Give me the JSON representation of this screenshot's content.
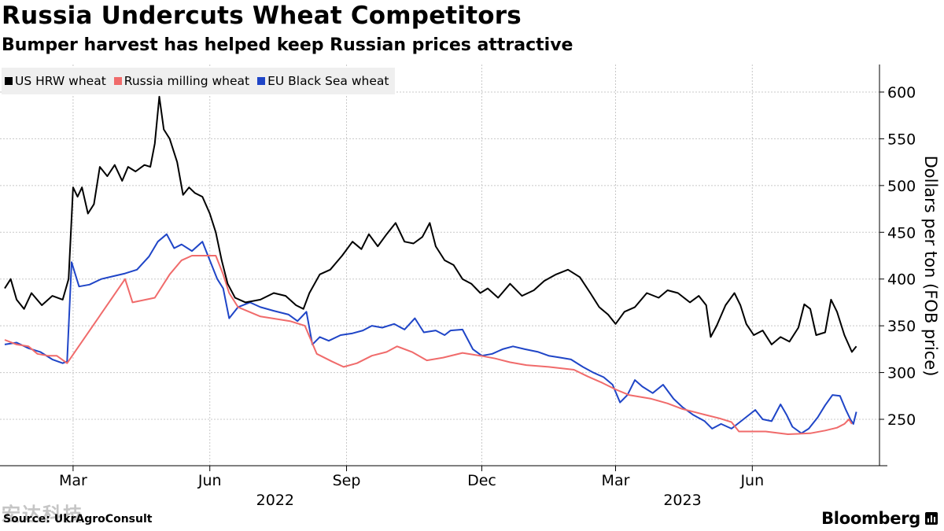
{
  "title": "Russia Undercuts Wheat Competitors",
  "subtitle": "Bumper harvest has helped keep Russian prices attractive",
  "source": "Source: UkrAgroConsult",
  "watermark": "宏达科技",
  "brand": "Bloomberg",
  "chart_data": {
    "type": "line",
    "title": "Russia Undercuts Wheat Competitors",
    "subtitle": "Bumper harvest has helped keep Russian prices attractive",
    "ylabel": "Dollars per ton (FOB price)",
    "xlabel": "",
    "ylim": [
      205,
      625
    ],
    "yticks": [
      250,
      300,
      350,
      400,
      450,
      500,
      550,
      600
    ],
    "xticks": [
      {
        "label": "Mar",
        "date": "2022-03-01"
      },
      {
        "label": "Jun",
        "date": "2022-06-01"
      },
      {
        "label": "Sep",
        "date": "2022-09-01"
      },
      {
        "label": "Dec",
        "date": "2022-12-01"
      },
      {
        "label": "Mar",
        "date": "2023-03-01"
      },
      {
        "label": "Jun",
        "date": "2023-06-01"
      }
    ],
    "year_labels": [
      {
        "label": "2022",
        "date": "2022-07-15"
      },
      {
        "label": "2023",
        "date": "2023-04-15"
      }
    ],
    "xrange": [
      "2022-01-14",
      "2023-08-15"
    ],
    "grid": true,
    "legend_position": "top-left",
    "axis_side": "right",
    "series": [
      {
        "name": "US HRW wheat",
        "color": "#000000",
        "points": [
          [
            "2022-01-14",
            390
          ],
          [
            "2022-01-18",
            400
          ],
          [
            "2022-01-22",
            378
          ],
          [
            "2022-01-27",
            368
          ],
          [
            "2022-02-01",
            385
          ],
          [
            "2022-02-08",
            372
          ],
          [
            "2022-02-15",
            382
          ],
          [
            "2022-02-22",
            378
          ],
          [
            "2022-02-26",
            400
          ],
          [
            "2022-03-01",
            498
          ],
          [
            "2022-03-04",
            488
          ],
          [
            "2022-03-07",
            498
          ],
          [
            "2022-03-11",
            470
          ],
          [
            "2022-03-15",
            480
          ],
          [
            "2022-03-19",
            520
          ],
          [
            "2022-03-24",
            510
          ],
          [
            "2022-03-29",
            522
          ],
          [
            "2022-04-03",
            505
          ],
          [
            "2022-04-07",
            520
          ],
          [
            "2022-04-12",
            515
          ],
          [
            "2022-04-18",
            522
          ],
          [
            "2022-04-22",
            520
          ],
          [
            "2022-04-25",
            545
          ],
          [
            "2022-04-28",
            595
          ],
          [
            "2022-05-01",
            560
          ],
          [
            "2022-05-05",
            550
          ],
          [
            "2022-05-10",
            525
          ],
          [
            "2022-05-14",
            490
          ],
          [
            "2022-05-18",
            498
          ],
          [
            "2022-05-22",
            492
          ],
          [
            "2022-05-27",
            488
          ],
          [
            "2022-06-01",
            470
          ],
          [
            "2022-06-05",
            450
          ],
          [
            "2022-06-09",
            420
          ],
          [
            "2022-06-13",
            395
          ],
          [
            "2022-06-18",
            380
          ],
          [
            "2022-06-25",
            375
          ],
          [
            "2022-07-05",
            378
          ],
          [
            "2022-07-14",
            385
          ],
          [
            "2022-07-22",
            382
          ],
          [
            "2022-07-29",
            372
          ],
          [
            "2022-08-03",
            368
          ],
          [
            "2022-08-07",
            385
          ],
          [
            "2022-08-14",
            405
          ],
          [
            "2022-08-21",
            410
          ],
          [
            "2022-08-29",
            425
          ],
          [
            "2022-09-05",
            440
          ],
          [
            "2022-09-11",
            432
          ],
          [
            "2022-09-16",
            448
          ],
          [
            "2022-09-22",
            435
          ],
          [
            "2022-09-28",
            448
          ],
          [
            "2022-10-04",
            460
          ],
          [
            "2022-10-10",
            440
          ],
          [
            "2022-10-16",
            438
          ],
          [
            "2022-10-22",
            445
          ],
          [
            "2022-10-27",
            460
          ],
          [
            "2022-10-31",
            435
          ],
          [
            "2022-11-06",
            420
          ],
          [
            "2022-11-12",
            415
          ],
          [
            "2022-11-18",
            400
          ],
          [
            "2022-11-24",
            395
          ],
          [
            "2022-11-30",
            385
          ],
          [
            "2022-12-05",
            390
          ],
          [
            "2022-12-12",
            380
          ],
          [
            "2022-12-20",
            395
          ],
          [
            "2022-12-28",
            382
          ],
          [
            "2023-01-05",
            388
          ],
          [
            "2023-01-12",
            398
          ],
          [
            "2023-01-20",
            405
          ],
          [
            "2023-01-28",
            410
          ],
          [
            "2023-02-05",
            402
          ],
          [
            "2023-02-12",
            385
          ],
          [
            "2023-02-18",
            370
          ],
          [
            "2023-02-24",
            362
          ],
          [
            "2023-03-01",
            352
          ],
          [
            "2023-03-07",
            365
          ],
          [
            "2023-03-14",
            370
          ],
          [
            "2023-03-22",
            385
          ],
          [
            "2023-03-30",
            380
          ],
          [
            "2023-04-05",
            388
          ],
          [
            "2023-04-12",
            385
          ],
          [
            "2023-04-20",
            375
          ],
          [
            "2023-04-26",
            382
          ],
          [
            "2023-05-01",
            372
          ],
          [
            "2023-05-04",
            338
          ],
          [
            "2023-05-08",
            350
          ],
          [
            "2023-05-14",
            372
          ],
          [
            "2023-05-20",
            385
          ],
          [
            "2023-05-24",
            372
          ],
          [
            "2023-05-28",
            352
          ],
          [
            "2023-06-02",
            340
          ],
          [
            "2023-06-08",
            345
          ],
          [
            "2023-06-14",
            330
          ],
          [
            "2023-06-20",
            338
          ],
          [
            "2023-06-26",
            333
          ],
          [
            "2023-07-02",
            348
          ],
          [
            "2023-07-06",
            373
          ],
          [
            "2023-07-10",
            368
          ],
          [
            "2023-07-14",
            340
          ],
          [
            "2023-07-20",
            343
          ],
          [
            "2023-07-24",
            378
          ],
          [
            "2023-07-28",
            365
          ],
          [
            "2023-08-02",
            340
          ],
          [
            "2023-08-07",
            322
          ],
          [
            "2023-08-10",
            328
          ]
        ]
      },
      {
        "name": "Russia milling wheat",
        "color": "#f06b6b",
        "points": [
          [
            "2022-01-14",
            335
          ],
          [
            "2022-01-22",
            330
          ],
          [
            "2022-01-30",
            328
          ],
          [
            "2022-02-05",
            320
          ],
          [
            "2022-02-12",
            318
          ],
          [
            "2022-02-18",
            318
          ],
          [
            "2022-02-25",
            310
          ],
          [
            "2022-04-05",
            400
          ],
          [
            "2022-04-10",
            375
          ],
          [
            "2022-04-25",
            380
          ],
          [
            "2022-05-05",
            405
          ],
          [
            "2022-05-13",
            420
          ],
          [
            "2022-05-20",
            425
          ],
          [
            "2022-06-05",
            425
          ],
          [
            "2022-06-10",
            405
          ],
          [
            "2022-06-14",
            385
          ],
          [
            "2022-06-20",
            370
          ],
          [
            "2022-07-05",
            360
          ],
          [
            "2022-07-25",
            355
          ],
          [
            "2022-08-04",
            350
          ],
          [
            "2022-08-12",
            320
          ],
          [
            "2022-08-22",
            312
          ],
          [
            "2022-08-30",
            306
          ],
          [
            "2022-09-08",
            310
          ],
          [
            "2022-09-18",
            318
          ],
          [
            "2022-09-28",
            322
          ],
          [
            "2022-10-05",
            328
          ],
          [
            "2022-10-15",
            322
          ],
          [
            "2022-10-25",
            313
          ],
          [
            "2022-11-05",
            316
          ],
          [
            "2022-11-18",
            321
          ],
          [
            "2022-11-30",
            318
          ],
          [
            "2022-12-10",
            315
          ],
          [
            "2022-12-20",
            311
          ],
          [
            "2022-12-31",
            308
          ],
          [
            "2023-01-15",
            306
          ],
          [
            "2023-02-01",
            303
          ],
          [
            "2023-02-10",
            296
          ],
          [
            "2023-02-20",
            289
          ],
          [
            "2023-03-01",
            282
          ],
          [
            "2023-03-10",
            276
          ],
          [
            "2023-03-25",
            272
          ],
          [
            "2023-04-05",
            267
          ],
          [
            "2023-04-15",
            261
          ],
          [
            "2023-04-30",
            255
          ],
          [
            "2023-05-10",
            251
          ],
          [
            "2023-05-18",
            247
          ],
          [
            "2023-05-23",
            237
          ],
          [
            "2023-06-10",
            237
          ],
          [
            "2023-06-25",
            234
          ],
          [
            "2023-07-10",
            235
          ],
          [
            "2023-07-20",
            238
          ],
          [
            "2023-07-28",
            241
          ],
          [
            "2023-08-02",
            245
          ],
          [
            "2023-08-05",
            250
          ],
          [
            "2023-08-07",
            245
          ]
        ]
      },
      {
        "name": "EU Black Sea wheat",
        "color": "#1f45c7",
        "points": [
          [
            "2022-01-14",
            330
          ],
          [
            "2022-01-22",
            332
          ],
          [
            "2022-01-30",
            326
          ],
          [
            "2022-02-07",
            322
          ],
          [
            "2022-02-15",
            314
          ],
          [
            "2022-02-22",
            310
          ],
          [
            "2022-02-25",
            312
          ],
          [
            "2022-02-28",
            418
          ],
          [
            "2022-03-05",
            392
          ],
          [
            "2022-03-12",
            394
          ],
          [
            "2022-03-20",
            400
          ],
          [
            "2022-03-28",
            403
          ],
          [
            "2022-04-05",
            406
          ],
          [
            "2022-04-13",
            410
          ],
          [
            "2022-04-21",
            424
          ],
          [
            "2022-04-27",
            440
          ],
          [
            "2022-05-03",
            448
          ],
          [
            "2022-05-08",
            433
          ],
          [
            "2022-05-13",
            437
          ],
          [
            "2022-05-20",
            430
          ],
          [
            "2022-05-27",
            440
          ],
          [
            "2022-06-01",
            420
          ],
          [
            "2022-06-06",
            400
          ],
          [
            "2022-06-10",
            390
          ],
          [
            "2022-06-14",
            358
          ],
          [
            "2022-06-20",
            370
          ],
          [
            "2022-06-28",
            375
          ],
          [
            "2022-07-05",
            370
          ],
          [
            "2022-07-14",
            366
          ],
          [
            "2022-07-24",
            362
          ],
          [
            "2022-07-30",
            355
          ],
          [
            "2022-08-05",
            365
          ],
          [
            "2022-08-09",
            330
          ],
          [
            "2022-08-14",
            338
          ],
          [
            "2022-08-20",
            334
          ],
          [
            "2022-08-28",
            340
          ],
          [
            "2022-09-05",
            342
          ],
          [
            "2022-09-12",
            345
          ],
          [
            "2022-09-18",
            350
          ],
          [
            "2022-09-25",
            348
          ],
          [
            "2022-10-03",
            352
          ],
          [
            "2022-10-10",
            346
          ],
          [
            "2022-10-17",
            358
          ],
          [
            "2022-10-23",
            343
          ],
          [
            "2022-10-31",
            345
          ],
          [
            "2022-11-06",
            340
          ],
          [
            "2022-11-10",
            345
          ],
          [
            "2022-11-18",
            346
          ],
          [
            "2022-11-25",
            325
          ],
          [
            "2022-12-01",
            318
          ],
          [
            "2022-12-08",
            320
          ],
          [
            "2022-12-15",
            325
          ],
          [
            "2022-12-22",
            328
          ],
          [
            "2022-12-30",
            325
          ],
          [
            "2023-01-08",
            322
          ],
          [
            "2023-01-15",
            318
          ],
          [
            "2023-01-23",
            316
          ],
          [
            "2023-01-30",
            314
          ],
          [
            "2023-02-07",
            306
          ],
          [
            "2023-02-14",
            300
          ],
          [
            "2023-02-21",
            295
          ],
          [
            "2023-02-27",
            287
          ],
          [
            "2023-03-04",
            268
          ],
          [
            "2023-03-09",
            276
          ],
          [
            "2023-03-14",
            292
          ],
          [
            "2023-03-19",
            285
          ],
          [
            "2023-03-26",
            278
          ],
          [
            "2023-04-02",
            287
          ],
          [
            "2023-04-09",
            272
          ],
          [
            "2023-04-15",
            263
          ],
          [
            "2023-04-22",
            255
          ],
          [
            "2023-04-30",
            248
          ],
          [
            "2023-05-05",
            240
          ],
          [
            "2023-05-11",
            245
          ],
          [
            "2023-05-18",
            240
          ],
          [
            "2023-05-26",
            250
          ],
          [
            "2023-06-03",
            260
          ],
          [
            "2023-06-08",
            250
          ],
          [
            "2023-06-14",
            248
          ],
          [
            "2023-06-20",
            266
          ],
          [
            "2023-06-24",
            255
          ],
          [
            "2023-06-28",
            242
          ],
          [
            "2023-07-04",
            235
          ],
          [
            "2023-07-09",
            240
          ],
          [
            "2023-07-15",
            252
          ],
          [
            "2023-07-20",
            265
          ],
          [
            "2023-07-25",
            276
          ],
          [
            "2023-07-30",
            275
          ],
          [
            "2023-08-03",
            260
          ],
          [
            "2023-08-06",
            250
          ],
          [
            "2023-08-08",
            245
          ],
          [
            "2023-08-10",
            258
          ]
        ]
      }
    ]
  }
}
